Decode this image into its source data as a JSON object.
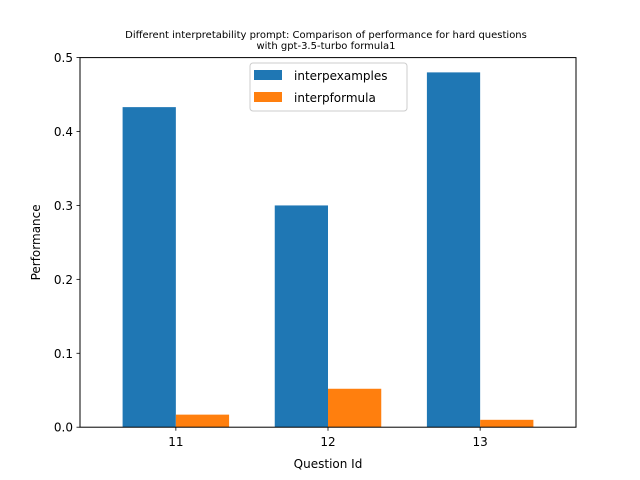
{
  "chart_data": {
    "type": "bar",
    "title_line1": "Different interpretability prompt: Comparison of performance for hard questions",
    "title_line2": "with gpt-3.5-turbo formula1",
    "xlabel": "Question Id",
    "ylabel": "Performance",
    "categories": [
      "11",
      "12",
      "13"
    ],
    "ylim": [
      0,
      0.5
    ],
    "yticks": [
      0.0,
      0.1,
      0.2,
      0.3,
      0.4,
      0.5
    ],
    "ytick_labels": [
      "0.0",
      "0.1",
      "0.2",
      "0.3",
      "0.4",
      "0.5"
    ],
    "grid": false,
    "legend_position": "upper center",
    "series": [
      {
        "name": "interpexamples",
        "color": "#1f77b4",
        "values": [
          0.433,
          0.3,
          0.48
        ]
      },
      {
        "name": "interpformula",
        "color": "#ff7f0e",
        "values": [
          0.017,
          0.052,
          0.01
        ]
      }
    ]
  }
}
